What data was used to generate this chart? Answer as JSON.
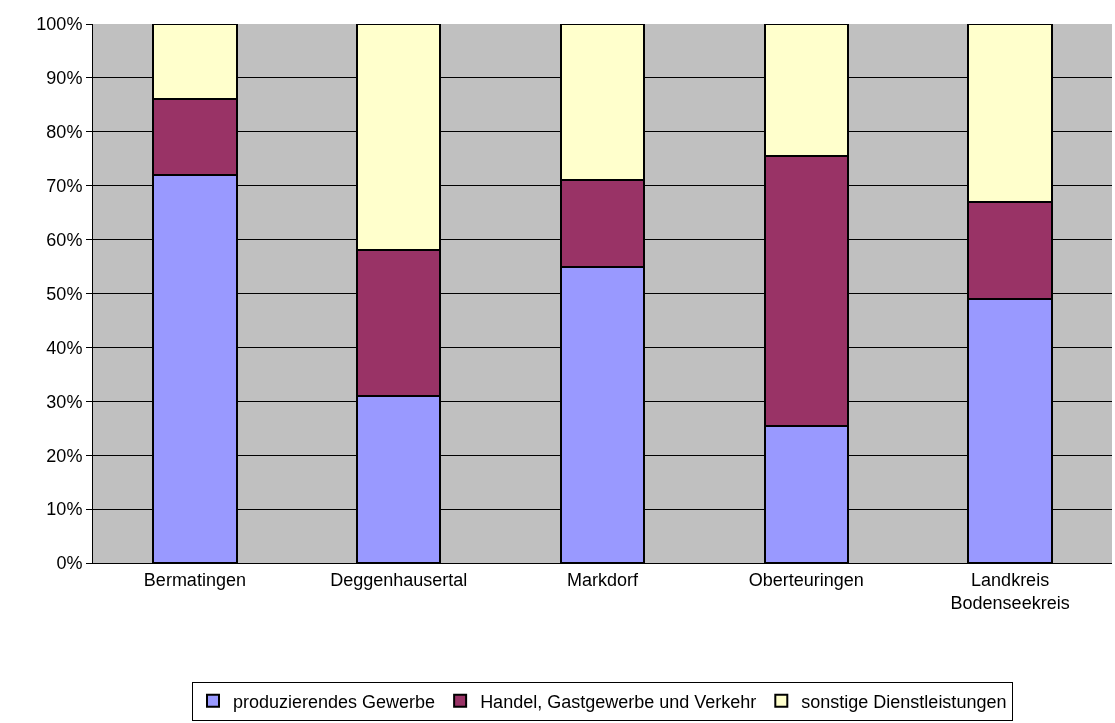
{
  "chart_data": {
    "type": "bar",
    "stacked": true,
    "categories": [
      "Bermatingen",
      "Deggenhausertal",
      "Markdorf",
      "Oberteuringen",
      "Landkreis Bodenseekreis"
    ],
    "series": [
      {
        "name": "produzierendes Gewerbe",
        "color": "#9999ff",
        "values": [
          72,
          31,
          55,
          25.5,
          49
        ]
      },
      {
        "name": "Handel, Gastgewerbe und Verkehr",
        "color": "#993366",
        "values": [
          14,
          27,
          16,
          50,
          18
        ]
      },
      {
        "name": "sonstige Dienstleistungen",
        "color": "#ffffcc",
        "values": [
          14,
          42,
          29,
          24.5,
          33
        ]
      }
    ],
    "ylim": [
      0,
      100
    ],
    "yticks": [
      {
        "value": 0,
        "label": "0%"
      },
      {
        "value": 10,
        "label": "10%"
      },
      {
        "value": 20,
        "label": "20%"
      },
      {
        "value": 30,
        "label": "30%"
      },
      {
        "value": 40,
        "label": "40%"
      },
      {
        "value": 50,
        "label": "50%"
      },
      {
        "value": 60,
        "label": "60%"
      },
      {
        "value": 70,
        "label": "70%"
      },
      {
        "value": 80,
        "label": "80%"
      },
      {
        "value": 90,
        "label": "90%"
      },
      {
        "value": 100,
        "label": "100%"
      }
    ],
    "grid": "y",
    "legend": "bottom"
  }
}
